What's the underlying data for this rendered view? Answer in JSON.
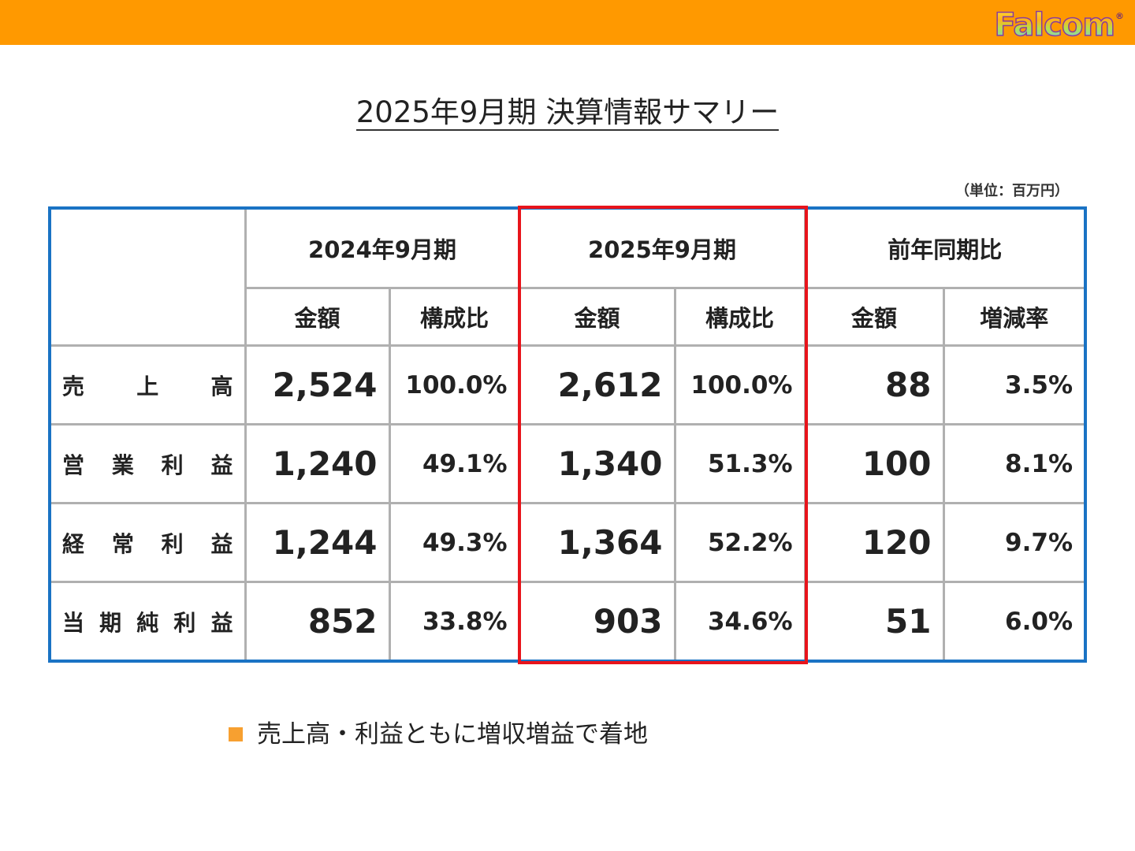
{
  "brand": {
    "logo_text": "Falcom",
    "logo_mark": "®",
    "bar_color": "#ff9900"
  },
  "title": "2025年9月期 決算情報サマリー",
  "unit": "（単位：百万円）",
  "table": {
    "periods": [
      "2024年9月期",
      "2025年9月期",
      "前年同期比"
    ],
    "sub_headers": [
      "金額",
      "構成比",
      "金額",
      "構成比",
      "金額",
      "増減率"
    ],
    "rows": [
      {
        "label_chars": [
          "売",
          "上",
          "高"
        ],
        "fy2024_amount": "2,524",
        "fy2024_ratio": "100.0%",
        "fy2025_amount": "2,612",
        "fy2025_ratio": "100.0%",
        "yoy_amount": "88",
        "yoy_rate": "3.5%"
      },
      {
        "label_chars": [
          "営",
          "業",
          "利",
          "益"
        ],
        "fy2024_amount": "1,240",
        "fy2024_ratio": "49.1%",
        "fy2025_amount": "1,340",
        "fy2025_ratio": "51.3%",
        "yoy_amount": "100",
        "yoy_rate": "8.1%"
      },
      {
        "label_chars": [
          "経",
          "常",
          "利",
          "益"
        ],
        "fy2024_amount": "1,244",
        "fy2024_ratio": "49.3%",
        "fy2025_amount": "1,364",
        "fy2025_ratio": "52.2%",
        "yoy_amount": "120",
        "yoy_rate": "9.7%"
      },
      {
        "label_chars": [
          "当",
          "期",
          "純",
          "利",
          "益"
        ],
        "fy2024_amount": "852",
        "fy2024_ratio": "33.8%",
        "fy2025_amount": "903",
        "fy2025_ratio": "34.6%",
        "yoy_amount": "51",
        "yoy_rate": "6.0%"
      }
    ],
    "border_color": "#1a73c4",
    "highlight_color": "#e8141b"
  },
  "note": {
    "bullet_icon": "square-bullet-icon",
    "text": "売上高・利益ともに増収増益で着地",
    "bullet_color": "#f7a030"
  }
}
